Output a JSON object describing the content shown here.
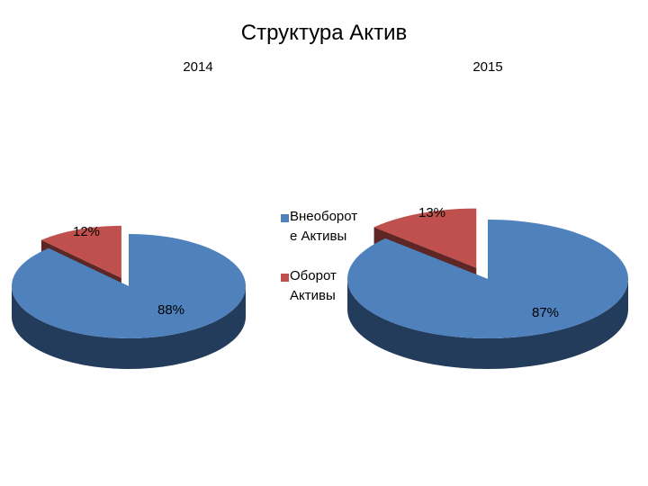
{
  "chart_data": {
    "type": "pie",
    "title": "Структура Актив",
    "categories": [
      "Внеоборотные Активы",
      "Оборотные Активы"
    ],
    "legend": [
      {
        "label": "Внеоборотные Активы",
        "text_lines": [
          "Внеоборот",
          "е Активы"
        ],
        "color": "#4F81BD"
      },
      {
        "label": "Оборотные Активы",
        "text_lines": [
          "Оборот",
          "Активы"
        ],
        "color": "#C0504D"
      }
    ],
    "pies": [
      {
        "year": "2014",
        "slices": [
          {
            "category": "Оборотные Активы",
            "value": 12,
            "label": "12%"
          },
          {
            "category": "Внеоборотные Активы",
            "value": 88,
            "label": "88%"
          }
        ]
      },
      {
        "year": "2015",
        "slices": [
          {
            "category": "Оборотные Активы",
            "value": 13,
            "label": "13%"
          },
          {
            "category": "Внеоборотные Активы",
            "value": 87,
            "label": "87%"
          }
        ]
      }
    ],
    "colors": {
      "blue_top": "#4F81BD",
      "blue_side": "#233C5B",
      "red_top": "#C0504D",
      "red_side": "#5E2624"
    },
    "legend_position": "center"
  }
}
